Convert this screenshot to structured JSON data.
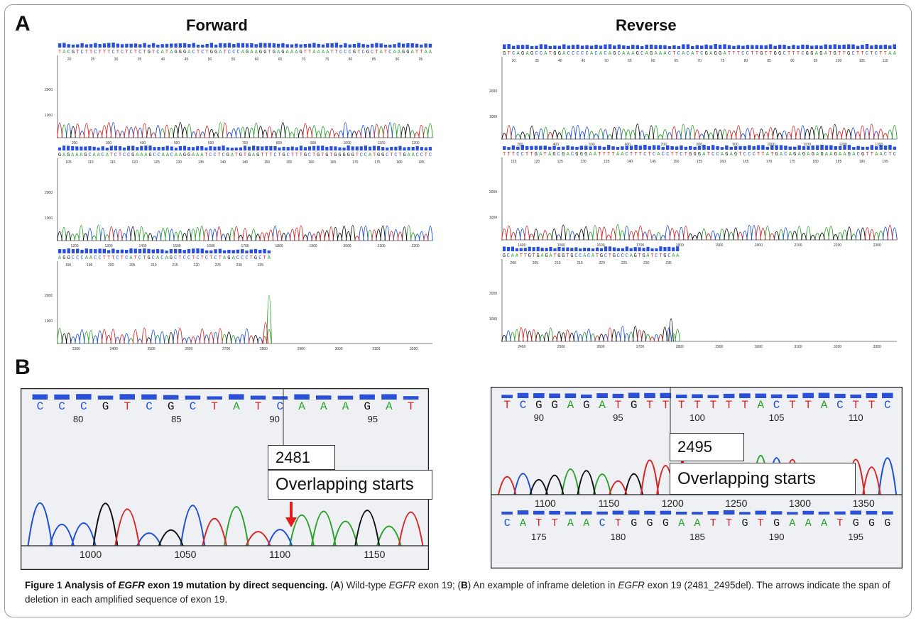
{
  "panel_a": {
    "label": "A",
    "forward_title": "Forward",
    "reverse_title": "Reverse",
    "forward_tracks": [
      {
        "seq": "TACGTCTTCTTTCTCTCTCTGTCATAGGGACTCTGGATCCCAGAAGGTGAGAAAGTTAAAATTCCCGTCGCTATCAAGGATTAA",
        "top_ticks": [
          "20",
          "25",
          "30",
          "35",
          "40",
          "45",
          "50",
          "55",
          "60",
          "65",
          "70",
          "75",
          "80",
          "85",
          "90",
          "95"
        ],
        "y_ticks": [
          "2000",
          "1000"
        ],
        "bottom_ticks": [
          "200",
          "300",
          "400",
          "500",
          "600",
          "700",
          "800",
          "900",
          "1000",
          "1100",
          "1200"
        ]
      },
      {
        "seq": "GAGAAAGCAACATCTCCGAAAGCCAACAAGGAAATCCTCGATGTGAGTTTCTGCTTTGCTGTGTGGGGGTCCATGGCTCTGAACCTC",
        "top_ticks": [
          "105",
          "110",
          "115",
          "120",
          "125",
          "130",
          "135",
          "140",
          "145",
          "150",
          "155",
          "160",
          "165",
          "170",
          "175",
          "180",
          "185"
        ],
        "y_ticks": [
          "2000",
          "1000"
        ],
        "bottom_ticks": [
          "1200",
          "1300",
          "1400",
          "1500",
          "1600",
          "1700",
          "1800",
          "1900",
          "2000",
          "2100",
          "2200"
        ]
      },
      {
        "seq": "AGGCCCAACCTTTCTCATCTGCACAGCTCCTCTCTCTAGACCCTGCTA",
        "top_ticks": [
          "190",
          "195",
          "200",
          "205",
          "210",
          "215",
          "220",
          "225",
          "230",
          "235"
        ],
        "y_ticks": [
          "2000",
          "1000"
        ],
        "bottom_ticks": [
          "2300",
          "2400",
          "2500",
          "2600",
          "2700",
          "2800",
          "2900",
          "3000",
          "3100",
          "3200"
        ]
      }
    ],
    "reverse_tracks": [
      {
        "seq": "GTCAGAGCCATGGACCCCCACACAGCAAAGCAGAAACTCACATCGAGGATTTCCTTGTTGGCTTTCGGAGATGTTGCTTCTCTTAA",
        "top_ticks": [
          "30",
          "35",
          "40",
          "45",
          "50",
          "55",
          "60",
          "65",
          "70",
          "75",
          "80",
          "85",
          "90",
          "95",
          "100",
          "105",
          "110"
        ],
        "y_ticks": [
          "2000",
          "1000"
        ],
        "bottom_ticks": [
          "300",
          "400",
          "500",
          "600",
          "700",
          "800",
          "900",
          "1000",
          "1100",
          "1200",
          "1300"
        ]
      },
      {
        "seq": "TTTCCTTGATAGCGACGGGAATTTTAACTTTCTCACCTTCTGGGATCCAGAGTCCCTTATGACAGAGAGAGAAGAAGACGTTAACTC",
        "top_ticks": [
          "115",
          "120",
          "125",
          "130",
          "135",
          "140",
          "145",
          "150",
          "155",
          "160",
          "165",
          "170",
          "175",
          "180",
          "185",
          "190",
          "195"
        ],
        "y_ticks": [
          "2000",
          "1000"
        ],
        "bottom_ticks": [
          "1400",
          "1500",
          "1600",
          "1700",
          "1800",
          "1900",
          "2000",
          "2100",
          "2200",
          "2300"
        ]
      },
      {
        "seq": "GCAATTGTGAGATGGTGCCACATGCTGCCCAGTGATCTGCAA",
        "top_ticks": [
          "200",
          "205",
          "210",
          "215",
          "220",
          "225",
          "230",
          "235"
        ],
        "y_ticks": [
          "2000",
          "1000"
        ],
        "bottom_ticks": [
          "2400",
          "2500",
          "2600",
          "2700",
          "2800",
          "2900",
          "3000",
          "3100",
          "3200",
          "3300"
        ]
      }
    ]
  },
  "panel_b": {
    "label": "B",
    "left": {
      "seq": "CCCGTCGCTATCAAAGAT",
      "top_ticks": [
        "80",
        "85",
        "90",
        "95"
      ],
      "bottom_ticks": [
        "1000",
        "1050",
        "1100",
        "1150"
      ],
      "position": "2481",
      "annotation": "Overlapping starts"
    },
    "right": {
      "seq": "TCGGAGATGTTTTTTTACTTACTTC",
      "top_ticks": [
        "90",
        "95",
        "100",
        "105",
        "110"
      ],
      "bottom_ticks": [
        "1100",
        "1150",
        "1200",
        "1250",
        "1300",
        "1350"
      ],
      "bottom_seq": "CATTAACTGGGAATTGTGAAATGGG",
      "bottom_seq_ticks": [
        "175",
        "180",
        "185",
        "190",
        "195"
      ],
      "position": "2495",
      "annotation": "Overlapping starts"
    }
  },
  "caption": {
    "figure_label": "Figure 1",
    "title_pre": " Analysis of ",
    "title_gene": "EGFR",
    "title_post": " exon 19 mutation by direct sequencing.",
    "t1": " (",
    "a_label": "A",
    "t2": ") Wild-type ",
    "t3": "EGFR",
    "t4": " exon 19; (",
    "b_label": "B",
    "t5": ") An example of inframe deletion in ",
    "t6": "EGFR",
    "t7": " exon 19 (2481_2495del). The arrows indicate the span of deletion in each amplified sequence of exon 19."
  },
  "colors": {
    "A": "#2ca02c",
    "C": "#1f4fd6",
    "G": "#111111",
    "T": "#d62728",
    "qv": "#2a4fd8",
    "frame": "#9a9a9a",
    "arrow": "#e41a1c"
  }
}
